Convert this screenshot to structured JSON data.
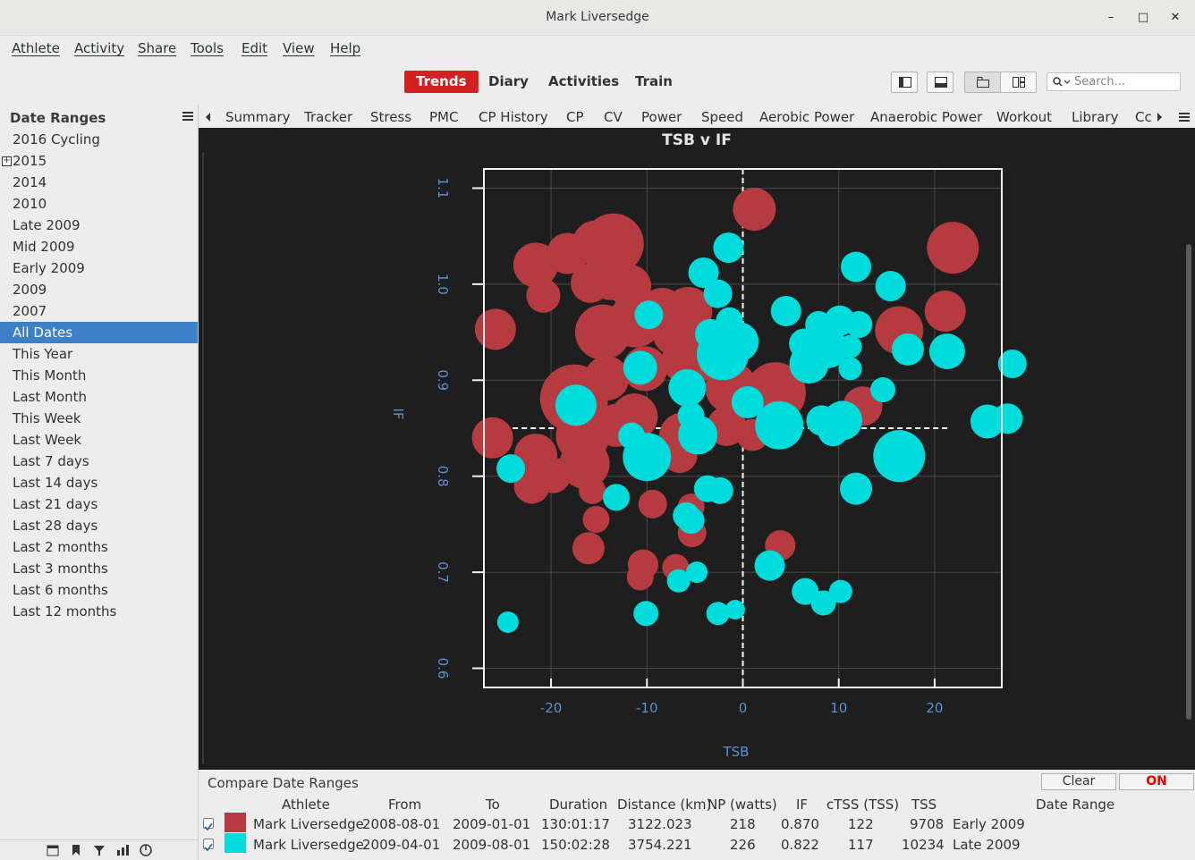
{
  "window": {
    "title": "Mark Liversedge"
  },
  "menubar": [
    "Athlete",
    "Activity",
    "Share",
    "Tools",
    "Edit",
    "View",
    "Help"
  ],
  "toolbar": {
    "views": [
      {
        "label": "Trends",
        "active": true
      },
      {
        "label": "Diary",
        "active": false
      },
      {
        "label": "Activities",
        "active": false
      },
      {
        "label": "Train",
        "active": false
      }
    ],
    "search_placeholder": "Search..."
  },
  "sidebar": {
    "header": "Date Ranges",
    "items": [
      "2016 Cycling",
      "2015",
      "2014",
      "2010",
      "Late 2009",
      "Mid 2009",
      "Early 2009",
      "2009",
      "2007",
      "All Dates",
      "This Year",
      "This Month",
      "Last Month",
      "This Week",
      "Last Week",
      "Last 7 days",
      "Last 14 days",
      "Last 21 days",
      "Last 28 days",
      "Last 2 months",
      "Last 3 months",
      "Last 6 months",
      "Last 12 months"
    ],
    "selected": "All Dates",
    "expandable": "2015"
  },
  "chart_tabs": [
    "Summary",
    "Tracker",
    "Stress",
    "PMC",
    "CP History",
    "CP",
    "CV",
    "Power",
    "Speed",
    "Aerobic Power",
    "Anaerobic Power",
    "Workout",
    "Library",
    "Cc"
  ],
  "chart_data": {
    "type": "scatter",
    "title": "TSB v IF",
    "xlabel": "TSB",
    "ylabel": "IF",
    "xlim": [
      -27,
      27
    ],
    "ylim": [
      0.58,
      1.12
    ],
    "xticks": [
      -20,
      -10,
      0,
      10,
      20
    ],
    "yticks": [
      0.6,
      0.7,
      0.8,
      0.9,
      1.0,
      1.1
    ],
    "grid": true,
    "mean_lines": {
      "tsb": 0,
      "if": 0.85
    },
    "series": [
      {
        "color": "#b63b40",
        "points": [
          {
            "x": 1.2,
            "y": 1.078,
            "r": 24
          },
          {
            "x": 21.9,
            "y": 1.038,
            "r": 29
          },
          {
            "x": -21.6,
            "y": 1.02,
            "r": 25
          },
          {
            "x": -18.3,
            "y": 1.032,
            "r": 23
          },
          {
            "x": -15.4,
            "y": 1.043,
            "r": 25
          },
          {
            "x": -13.5,
            "y": 1.042,
            "r": 34
          },
          {
            "x": -15.9,
            "y": 1.001,
            "r": 22
          },
          {
            "x": -13.8,
            "y": 1.002,
            "r": 20
          },
          {
            "x": -11.8,
            "y": 0.998,
            "r": 24
          },
          {
            "x": -20.8,
            "y": 0.988,
            "r": 19
          },
          {
            "x": -8.4,
            "y": 0.972,
            "r": 26
          },
          {
            "x": -5.7,
            "y": 0.972,
            "r": 27
          },
          {
            "x": -25.8,
            "y": 0.953,
            "r": 23
          },
          {
            "x": -14.6,
            "y": 0.95,
            "r": 31
          },
          {
            "x": -11.2,
            "y": 0.962,
            "r": 30
          },
          {
            "x": -7.3,
            "y": 0.947,
            "r": 22
          },
          {
            "x": 16.3,
            "y": 0.952,
            "r": 27
          },
          {
            "x": 21.1,
            "y": 0.972,
            "r": 23
          },
          {
            "x": -5.6,
            "y": 0.922,
            "r": 30
          },
          {
            "x": -10.2,
            "y": 0.912,
            "r": 25
          },
          {
            "x": -14.2,
            "y": 0.902,
            "r": 25
          },
          {
            "x": -17.6,
            "y": 0.881,
            "r": 38
          },
          {
            "x": -1.2,
            "y": 0.892,
            "r": 29
          },
          {
            "x": 3.4,
            "y": 0.887,
            "r": 34
          },
          {
            "x": 12.5,
            "y": 0.873,
            "r": 22
          },
          {
            "x": -13.2,
            "y": 0.853,
            "r": 24
          },
          {
            "x": -11.3,
            "y": 0.862,
            "r": 26
          },
          {
            "x": -16.7,
            "y": 0.842,
            "r": 30
          },
          {
            "x": -6.3,
            "y": 0.842,
            "r": 26
          },
          {
            "x": -1.7,
            "y": 0.852,
            "r": 22
          },
          {
            "x": -26.1,
            "y": 0.84,
            "r": 23
          },
          {
            "x": 1.0,
            "y": 0.843,
            "r": 18
          },
          {
            "x": -21.6,
            "y": 0.822,
            "r": 24
          },
          {
            "x": -16.5,
            "y": 0.813,
            "r": 28
          },
          {
            "x": -6.6,
            "y": 0.822,
            "r": 20
          },
          {
            "x": -19.8,
            "y": 0.801,
            "r": 20
          },
          {
            "x": -22.0,
            "y": 0.79,
            "r": 20
          },
          {
            "x": -15.7,
            "y": 0.785,
            "r": 15
          },
          {
            "x": -9.4,
            "y": 0.771,
            "r": 16
          },
          {
            "x": -5.4,
            "y": 0.768,
            "r": 15
          },
          {
            "x": -15.3,
            "y": 0.755,
            "r": 15
          },
          {
            "x": -5.3,
            "y": 0.741,
            "r": 16
          },
          {
            "x": -16.1,
            "y": 0.725,
            "r": 18
          },
          {
            "x": 3.9,
            "y": 0.728,
            "r": 17
          },
          {
            "x": -10.4,
            "y": 0.708,
            "r": 17
          },
          {
            "x": -10.7,
            "y": 0.695,
            "r": 15
          },
          {
            "x": -7.0,
            "y": 0.705,
            "r": 15
          }
        ]
      },
      {
        "color": "#00dcdc",
        "points": [
          {
            "x": -1.5,
            "y": 1.038,
            "r": 17
          },
          {
            "x": 11.8,
            "y": 1.018,
            "r": 17
          },
          {
            "x": -4.1,
            "y": 1.012,
            "r": 17
          },
          {
            "x": 15.4,
            "y": 0.998,
            "r": 17
          },
          {
            "x": -2.6,
            "y": 0.99,
            "r": 16
          },
          {
            "x": 4.5,
            "y": 0.972,
            "r": 17
          },
          {
            "x": -9.8,
            "y": 0.968,
            "r": 16
          },
          {
            "x": -1.4,
            "y": 0.962,
            "r": 15
          },
          {
            "x": 7.9,
            "y": 0.958,
            "r": 15
          },
          {
            "x": 10.1,
            "y": 0.962,
            "r": 17
          },
          {
            "x": 12.1,
            "y": 0.958,
            "r": 15
          },
          {
            "x": -3.4,
            "y": 0.948,
            "r": 17
          },
          {
            "x": -0.4,
            "y": 0.94,
            "r": 22
          },
          {
            "x": -2.1,
            "y": 0.927,
            "r": 29
          },
          {
            "x": 6.4,
            "y": 0.938,
            "r": 17
          },
          {
            "x": 8.9,
            "y": 0.933,
            "r": 22
          },
          {
            "x": 11.2,
            "y": 0.935,
            "r": 13
          },
          {
            "x": 17.2,
            "y": 0.932,
            "r": 18
          },
          {
            "x": 21.3,
            "y": 0.93,
            "r": 20
          },
          {
            "x": -10.7,
            "y": 0.913,
            "r": 19
          },
          {
            "x": 6.9,
            "y": 0.917,
            "r": 22
          },
          {
            "x": 11.2,
            "y": 0.912,
            "r": 13
          },
          {
            "x": 28.1,
            "y": 0.917,
            "r": 16
          },
          {
            "x": -5.8,
            "y": 0.892,
            "r": 21
          },
          {
            "x": 0.5,
            "y": 0.877,
            "r": 18
          },
          {
            "x": 14.6,
            "y": 0.89,
            "r": 14
          },
          {
            "x": -17.4,
            "y": 0.874,
            "r": 23
          },
          {
            "x": -5.4,
            "y": 0.863,
            "r": 15
          },
          {
            "x": 8.2,
            "y": 0.858,
            "r": 17
          },
          {
            "x": 10.4,
            "y": 0.858,
            "r": 22
          },
          {
            "x": 3.8,
            "y": 0.853,
            "r": 27
          },
          {
            "x": 25.5,
            "y": 0.857,
            "r": 19
          },
          {
            "x": 27.6,
            "y": 0.86,
            "r": 17
          },
          {
            "x": -11.6,
            "y": 0.842,
            "r": 15
          },
          {
            "x": -4.7,
            "y": 0.843,
            "r": 22
          },
          {
            "x": 9.4,
            "y": 0.847,
            "r": 17
          },
          {
            "x": -10.0,
            "y": 0.82,
            "r": 27
          },
          {
            "x": 16.3,
            "y": 0.821,
            "r": 29
          },
          {
            "x": -24.2,
            "y": 0.808,
            "r": 16
          },
          {
            "x": -13.2,
            "y": 0.778,
            "r": 15
          },
          {
            "x": -3.7,
            "y": 0.787,
            "r": 15
          },
          {
            "x": -2.4,
            "y": 0.785,
            "r": 15
          },
          {
            "x": 11.8,
            "y": 0.787,
            "r": 18
          },
          {
            "x": -5.9,
            "y": 0.759,
            "r": 15
          },
          {
            "x": -5.4,
            "y": 0.754,
            "r": 15
          },
          {
            "x": 2.8,
            "y": 0.707,
            "r": 17
          },
          {
            "x": -4.8,
            "y": 0.7,
            "r": 12
          },
          {
            "x": -6.7,
            "y": 0.691,
            "r": 13
          },
          {
            "x": 6.5,
            "y": 0.68,
            "r": 15
          },
          {
            "x": 10.2,
            "y": 0.68,
            "r": 13
          },
          {
            "x": 8.4,
            "y": 0.668,
            "r": 14
          },
          {
            "x": -10.1,
            "y": 0.657,
            "r": 14
          },
          {
            "x": -24.5,
            "y": 0.648,
            "r": 12
          },
          {
            "x": -2.6,
            "y": 0.657,
            "r": 13
          },
          {
            "x": -0.8,
            "y": 0.661,
            "r": 11
          }
        ]
      }
    ]
  },
  "compare": {
    "title": "Compare Date Ranges",
    "clear_label": "Clear",
    "on_label": "ON",
    "columns": [
      "Athlete",
      "From",
      "To",
      "Duration",
      "Distance (km)",
      "NP (watts)",
      "IF",
      "cTSS (TSS)",
      "TSS",
      "Date Range"
    ],
    "rows": [
      {
        "color": "#b63b40",
        "athlete": "Mark Liversedge",
        "from": "2008-08-01",
        "to": "2009-01-01",
        "duration": "130:01:17",
        "distance": "3122.023",
        "np": "218",
        "if": "0.870",
        "ctss": "122",
        "tss": "9708",
        "range": "Early 2009"
      },
      {
        "color": "#00dcdc",
        "athlete": "Mark Liversedge",
        "from": "2009-04-01",
        "to": "2009-08-01",
        "duration": "150:02:28",
        "distance": "3754.221",
        "np": "226",
        "if": "0.822",
        "ctss": "117",
        "tss": "10234",
        "range": "Late 2009"
      }
    ]
  }
}
